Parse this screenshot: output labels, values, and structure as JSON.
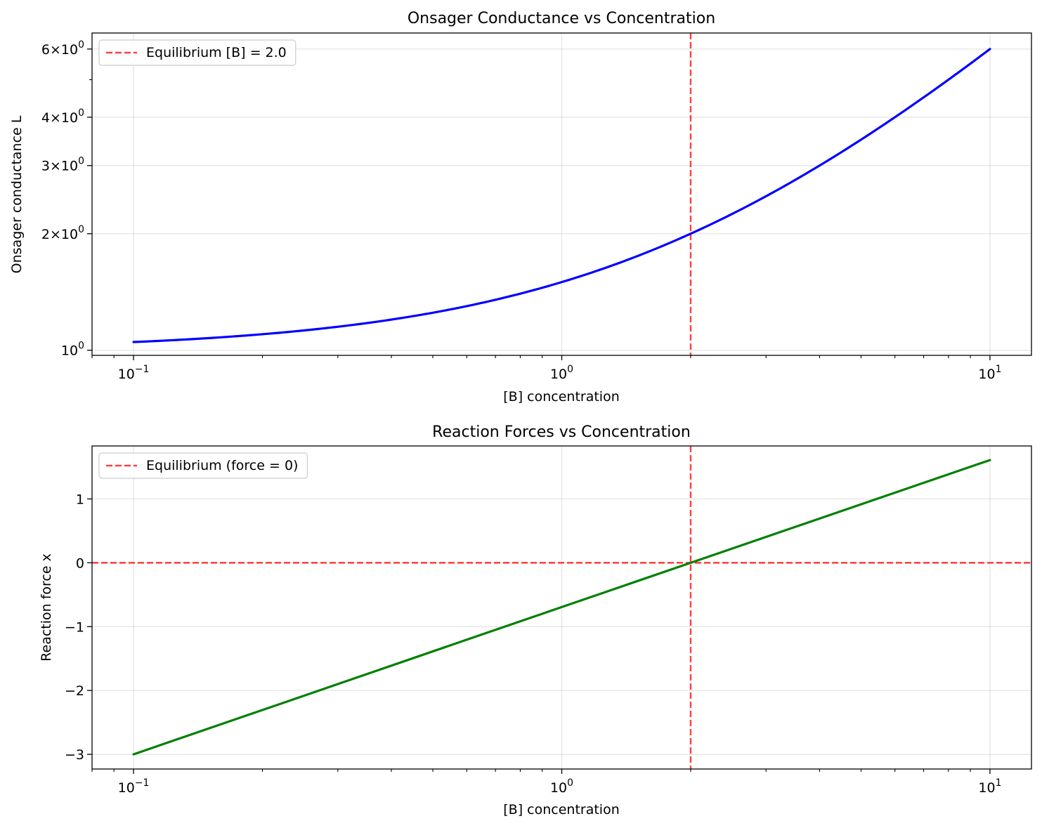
{
  "chart_data": [
    {
      "type": "line",
      "title": "Onsager Conductance vs Concentration",
      "xlabel": "[B] concentration",
      "ylabel": "Onsager conductance L",
      "xscale": "log",
      "yscale": "log",
      "xlim": [
        0.08,
        12.5
      ],
      "ylim": [
        0.97,
        6.6
      ],
      "xticks": [
        {
          "base": "10",
          "exp": "−1",
          "value": 0.1
        },
        {
          "base": "10",
          "exp": "0",
          "value": 1
        },
        {
          "base": "10",
          "exp": "1",
          "value": 10
        }
      ],
      "yticks": [
        {
          "prefix": "",
          "base": "10",
          "exp": "0",
          "value": 1
        },
        {
          "prefix": "2×",
          "base": "10",
          "exp": "0",
          "value": 2
        },
        {
          "prefix": "3×",
          "base": "10",
          "exp": "0",
          "value": 3
        },
        {
          "prefix": "4×",
          "base": "10",
          "exp": "0",
          "value": 4
        },
        {
          "prefix": "6×",
          "base": "10",
          "exp": "0",
          "value": 6
        }
      ],
      "grid": true,
      "series": [
        {
          "color": "#0000ff",
          "x": [
            0.1,
            0.15,
            0.2,
            0.3,
            0.5,
            0.7,
            1.0,
            1.5,
            2.0,
            3.0,
            5.0,
            7.0,
            10.0
          ],
          "y": [
            1.05,
            1.075,
            1.1,
            1.15,
            1.25,
            1.35,
            1.5,
            1.75,
            2.0,
            2.5,
            3.5,
            4.5,
            6.0
          ]
        }
      ],
      "vlines": [
        {
          "x": 2.0,
          "color": "#ff0000",
          "style": "dashed"
        }
      ],
      "hlines": [],
      "legend": {
        "position": "upper-left",
        "entries": [
          {
            "label": "Equilibrium [B] = 2.0",
            "color": "#ff0000",
            "style": "dashed"
          }
        ]
      }
    },
    {
      "type": "line",
      "title": "Reaction Forces vs Concentration",
      "xlabel": "[B] concentration",
      "ylabel": "Reaction force x",
      "xscale": "log",
      "yscale": "linear",
      "xlim": [
        0.08,
        12.5
      ],
      "ylim": [
        -3.23,
        1.83
      ],
      "xticks": [
        {
          "base": "10",
          "exp": "−1",
          "value": 0.1
        },
        {
          "base": "10",
          "exp": "0",
          "value": 1
        },
        {
          "base": "10",
          "exp": "1",
          "value": 10
        }
      ],
      "yticks": [
        {
          "label": "−3",
          "value": -3
        },
        {
          "label": "−2",
          "value": -2
        },
        {
          "label": "−1",
          "value": -1
        },
        {
          "label": "0",
          "value": 0
        },
        {
          "label": "1",
          "value": 1
        }
      ],
      "grid": true,
      "series": [
        {
          "color": "#008000",
          "x": [
            0.1,
            1.0,
            2.0,
            10.0
          ],
          "y": [
            -3.0,
            -0.693,
            0.0,
            1.609
          ]
        }
      ],
      "vlines": [
        {
          "x": 2.0,
          "color": "#ff0000",
          "style": "dashed"
        }
      ],
      "hlines": [
        {
          "y": 0.0,
          "color": "#ff0000",
          "style": "dashed"
        }
      ],
      "legend": {
        "position": "upper-left",
        "entries": [
          {
            "label": "Equilibrium (force = 0)",
            "color": "#ff0000",
            "style": "dashed"
          }
        ]
      }
    }
  ]
}
